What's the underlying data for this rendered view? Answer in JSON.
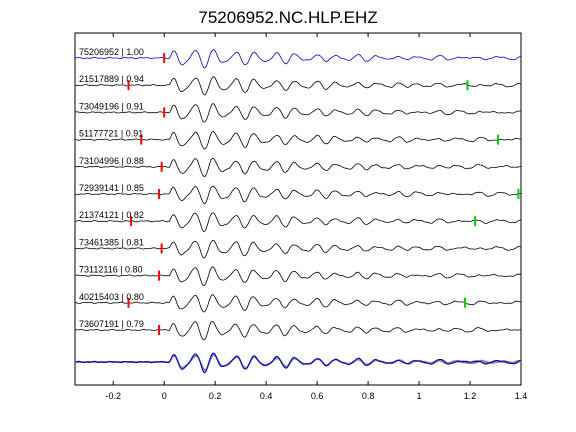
{
  "chart_data": {
    "type": "line",
    "title": "75206952.NC.HLP.EHZ",
    "xlabel": "",
    "ylabel": "",
    "xlim": [
      -0.35,
      1.4
    ],
    "xticks": [
      "-0.2",
      "0",
      "0.2",
      "0.4",
      "0.6",
      "0.8",
      "1",
      "1.2",
      "1.4"
    ],
    "xtick_values": [
      -0.2,
      0,
      0.2,
      0.4,
      0.6,
      0.8,
      1.0,
      1.2,
      1.4
    ],
    "grid": false,
    "colors": {
      "master": "#0000cc",
      "trace": "#000000",
      "stack_overlay": "#888888",
      "p_pick": "#ff0000",
      "s_pick": "#00cc00"
    },
    "series": [
      {
        "label": "75206952 | 1.00",
        "p_pick": 0.0,
        "s_pick": null,
        "master": true
      },
      {
        "label": "21517889 | 0.94",
        "p_pick": -0.14,
        "s_pick": 1.19
      },
      {
        "label": "73049196 | 0.91",
        "p_pick": 0.0,
        "s_pick": null
      },
      {
        "label": "51177721 | 0.91",
        "p_pick": -0.09,
        "s_pick": 1.31
      },
      {
        "label": "73104996 | 0.88",
        "p_pick": -0.01,
        "s_pick": null
      },
      {
        "label": "72939141 | 0.85",
        "p_pick": -0.02,
        "s_pick": 1.39
      },
      {
        "label": "21374121 | 0.82",
        "p_pick": -0.13,
        "s_pick": 1.22
      },
      {
        "label": "73461385 | 0.81",
        "p_pick": -0.01,
        "s_pick": null
      },
      {
        "label": "73112116 | 0.80",
        "p_pick": -0.02,
        "s_pick": null
      },
      {
        "label": "40215403 | 0.80",
        "p_pick": -0.14,
        "s_pick": 1.18
      },
      {
        "label": "73607191 | 0.79",
        "p_pick": -0.02,
        "s_pick": null
      }
    ],
    "stack": {
      "overlay": true
    }
  }
}
